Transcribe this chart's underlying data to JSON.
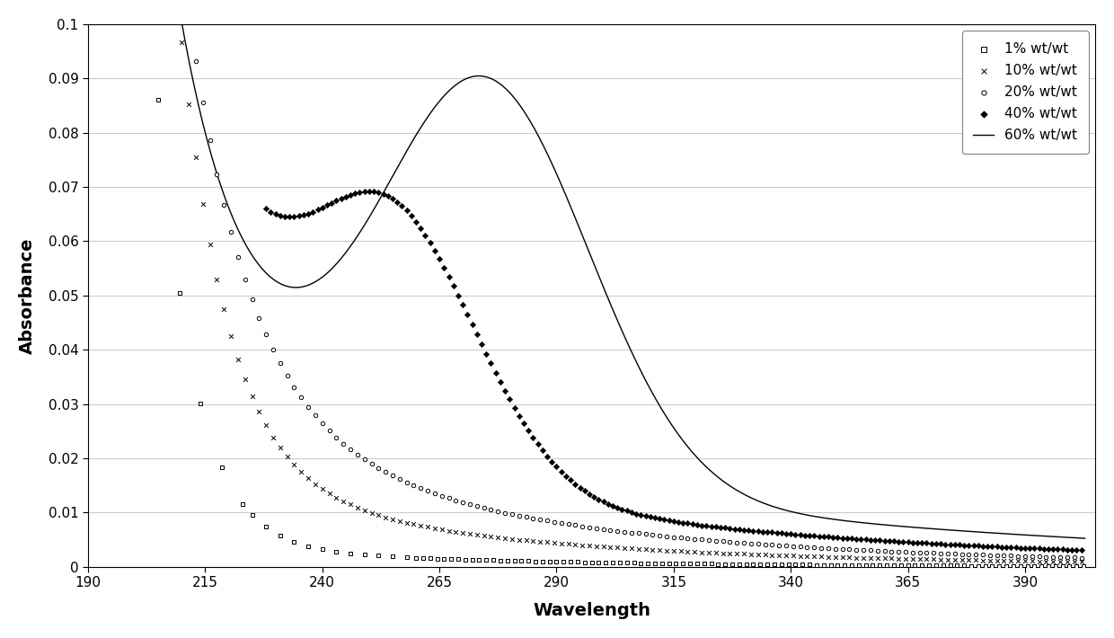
{
  "title": "",
  "xlabel": "Wavelength",
  "ylabel": "Absorbance",
  "xlim": [
    190,
    405
  ],
  "ylim": [
    0,
    0.1
  ],
  "yticks": [
    0,
    0.01,
    0.02,
    0.03,
    0.04,
    0.05,
    0.06,
    0.07,
    0.08,
    0.09,
    0.1
  ],
  "xticks": [
    190,
    215,
    240,
    265,
    290,
    315,
    340,
    365,
    390
  ],
  "legend_entries": [
    "1% wt/wt",
    "10% wt/wt",
    "20% wt/wt",
    "40% wt/wt",
    "60% wt/wt"
  ],
  "series_color": "black",
  "background_color": "#ffffff",
  "grid_color": "#cccccc"
}
